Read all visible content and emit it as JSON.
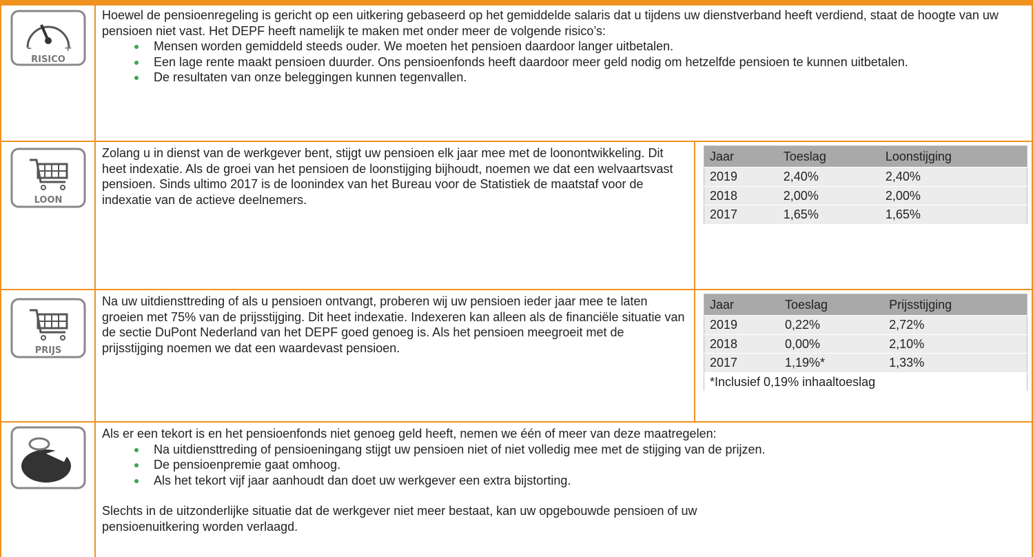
{
  "sections": [
    {
      "icon_label": "RISICO",
      "intro": "Hoewel de pensioenregeling is gericht op een uitkering gebaseerd op het gemiddelde salaris dat u tijdens uw dienstverband heeft verdiend, staat de hoogte van uw pensioen niet vast. Het DEPF heeft namelijk te maken met onder meer de volgende risico’s:",
      "bullets": [
        "Mensen worden gemiddeld steeds ouder. We moeten het pensioen daardoor langer uitbetalen.",
        "Een lage rente maakt pensioen duurder. Ons pensioenfonds heeft daardoor meer geld nodig om hetzelfde pensioen te kunnen uitbetalen.",
        "De resultaten van onze beleggingen kunnen tegenvallen."
      ]
    },
    {
      "icon_label": "LOON",
      "text": "Zolang u in dienst van de werkgever bent, stijgt uw pensioen elk jaar mee met de loonontwikkeling. Dit heet indexatie. Als de groei van het pensioen de loonstijging bijhoudt, noemen we dat een welvaartsvast pensioen. Sinds ultimo 2017 is de loonindex van het Bureau voor de Statistiek de maatstaf voor de indexatie van de actieve deelnemers.",
      "table": {
        "header": [
          "Jaar",
          "Toeslag",
          "Loonstijging"
        ],
        "rows": [
          [
            "2019",
            "2,40%",
            "2,40%"
          ],
          [
            "2018",
            "2,00%",
            "2,00%"
          ],
          [
            "2017",
            "1,65%",
            "1,65%"
          ]
        ]
      }
    },
    {
      "icon_label": "PRIJS",
      "text": "Na uw uitdiensttreding of als u pensioen ontvangt, proberen wij uw pensioen ieder jaar mee te laten groeien met 75% van de prijsstijging. Dit heet indexatie. Indexeren kan alleen als de financiële situatie van de sectie DuPont Nederland van het DEPF goed genoeg is. Als het pensioen meegroeit met de prijsstijging noemen we dat een waardevast pensioen.",
      "table": {
        "header": [
          "Jaar",
          "Toeslag",
          "Prijsstijging"
        ],
        "rows": [
          [
            "2019",
            "0,22%",
            "2,72%"
          ],
          [
            "2018",
            "0,00%",
            "2,10%"
          ],
          [
            "2017",
            "1,19%*",
            "1,33%"
          ]
        ],
        "footnote": "*Inclusief 0,19% inhaaltoeslag"
      }
    },
    {
      "intro": "Als er een tekort is en het pensioenfonds niet genoeg geld heeft, nemen we één of meer van deze maatregelen:",
      "bullets": [
        "Na uitdiensttreding of pensioeningang stijgt uw pensioen niet of niet volledig mee met de stijging van de prijzen.",
        "De pensioenpremie gaat omhoog.",
        "Als het tekort vijf jaar aanhoudt dan doet uw werkgever een extra bijstorting."
      ],
      "outro": "Slechts in de uitzonderlijke situatie dat de werkgever niet meer bestaat, kan uw opgebouwde pensioen of uw pensioenuitkering worden verlaagd."
    }
  ]
}
